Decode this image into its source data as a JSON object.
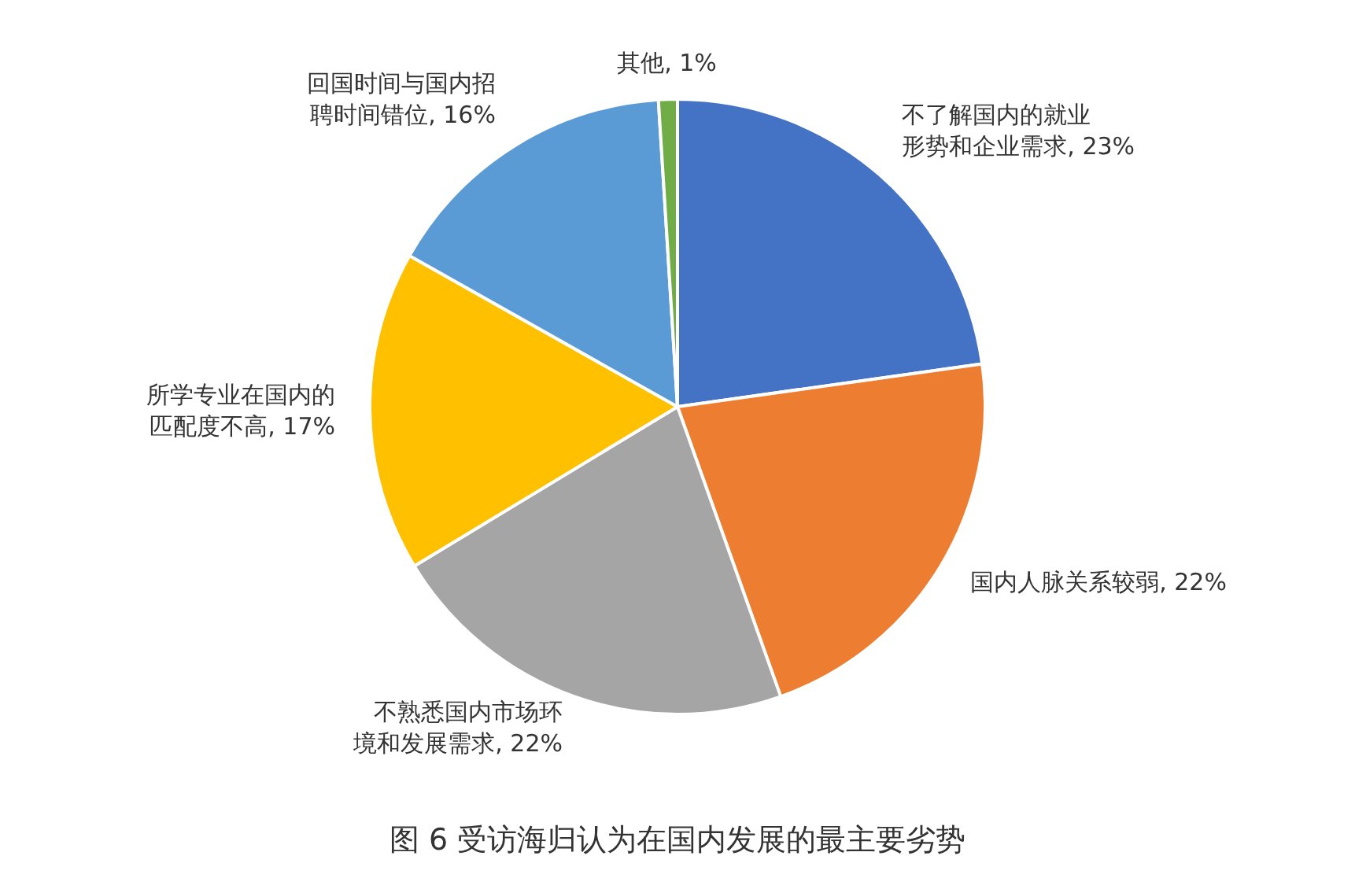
{
  "chart_data": {
    "type": "pie",
    "title": "图 6  受访海归认为在国内发展的最主要劣势",
    "categories": [
      "不了解国内的就业形势和企业需求",
      "国内人脉关系较弱",
      "不熟悉国内市场环境和发展需求",
      "所学专业在国内的匹配度不高",
      "回国时间与国内招聘时间错位",
      "其他"
    ],
    "values": [
      23,
      22,
      22,
      17,
      16,
      1
    ],
    "value_labels": [
      "23%",
      "22%",
      "22%",
      "17%",
      "16%",
      "1%"
    ],
    "colors": [
      "#4472c4",
      "#ed7d31",
      "#a5a5a5",
      "#ffc000",
      "#5b9bd5",
      "#70ad47"
    ],
    "legend": false
  }
}
